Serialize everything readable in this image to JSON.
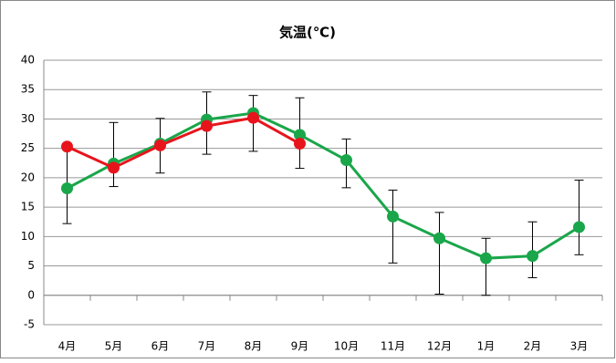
{
  "chart_data": {
    "type": "line",
    "title": "気温(℃)",
    "categories": [
      "4月",
      "5月",
      "6月",
      "7月",
      "8月",
      "9月",
      "10月",
      "11月",
      "12月",
      "1月",
      "2月",
      "3月"
    ],
    "series": [
      {
        "color": "#1aa64a",
        "values": [
          18.2,
          22.4,
          25.8,
          29.9,
          31.0,
          27.3,
          23.0,
          13.4,
          9.7,
          6.3,
          6.7,
          11.6
        ],
        "error_low": [
          12.2,
          18.5,
          20.8,
          24.0,
          24.5,
          21.6,
          18.3,
          5.5,
          0.2,
          0.0,
          3.0,
          6.9
        ],
        "error_high": [
          25.2,
          29.4,
          30.1,
          34.6,
          34.0,
          33.6,
          26.6,
          17.9,
          14.1,
          9.7,
          12.5,
          19.6
        ]
      },
      {
        "color": "#e8141c",
        "values": [
          25.3,
          21.7,
          25.5,
          28.8,
          30.2,
          25.8,
          null,
          null,
          null,
          null,
          null,
          null
        ]
      }
    ],
    "ylim": [
      -5,
      40
    ],
    "yticks": [
      -5,
      0,
      5,
      10,
      15,
      20,
      25,
      30,
      35,
      40
    ],
    "grid": true
  }
}
